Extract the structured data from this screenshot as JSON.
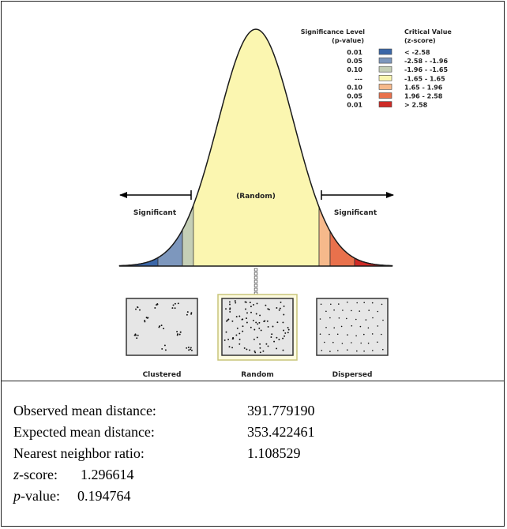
{
  "legend": {
    "header_sig_line1": "Significance Level",
    "header_sig_line2": "(p-value)",
    "header_crit_line1": "Critical Value",
    "header_crit_line2": "(z-score)",
    "rows": [
      {
        "p": "0.01",
        "z": "< -2.58",
        "color": "#3a66a8"
      },
      {
        "p": "0.05",
        "z": "-2.58 - -1.96",
        "color": "#7d97bd"
      },
      {
        "p": "0.10",
        "z": "-1.96 - -1.65",
        "color": "#c5cfb6"
      },
      {
        "p": "---",
        "z": "-1.65 - 1.65",
        "color": "#fbf6b0"
      },
      {
        "p": "0.10",
        "z": "1.65 - 1.96",
        "color": "#f6b98b"
      },
      {
        "p": "0.05",
        "z": "1.96 - 2.58",
        "color": "#e9714c"
      },
      {
        "p": "0.01",
        "z": "> 2.58",
        "color": "#cf2a26"
      }
    ]
  },
  "curve": {
    "center_label": "(Random)",
    "left_label": "Significant",
    "right_label": "Significant"
  },
  "patterns": {
    "clustered": "Clustered",
    "random": "Random",
    "dispersed": "Dispersed"
  },
  "stats": {
    "observed_label": "Observed mean distance:",
    "observed_value": "391.779190",
    "expected_label": "Expected mean distance:",
    "expected_value": "353.422461",
    "ratio_label": "Nearest neighbor ratio:",
    "ratio_value": "1.108529",
    "z_label_italic": "z",
    "z_label_rest": "-score:",
    "z_value": "1.296614",
    "p_label_italic": "p",
    "p_label_rest": "-value:",
    "p_value": "0.194764"
  }
}
